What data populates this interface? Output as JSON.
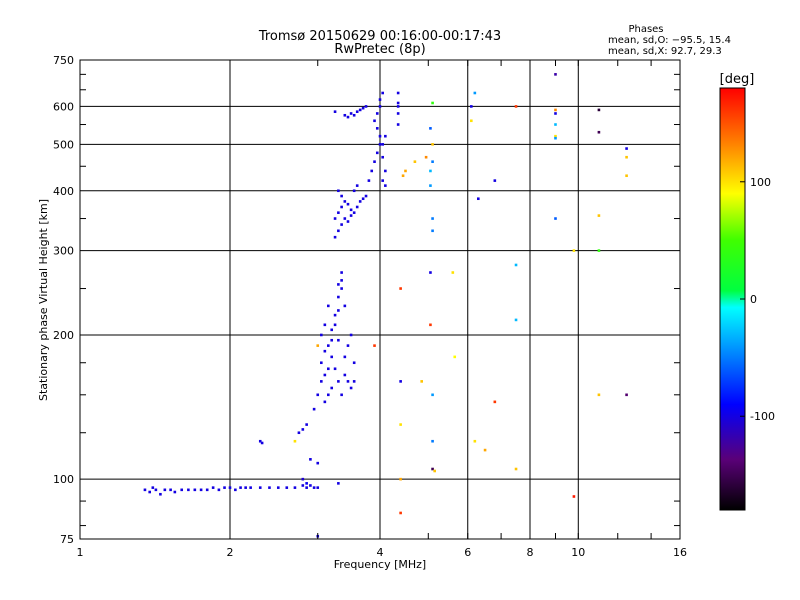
{
  "chart_data": {
    "type": "scatter",
    "title": "Tromsø 20150629 00:16:00-00:17:43",
    "subtitle": "RwPretec (8p)",
    "xlabel": "Frequency [MHz]",
    "ylabel": "Stationary phase Virtual Height [km]",
    "x_scale": "log",
    "y_scale": "log",
    "xlim": [
      1,
      16
    ],
    "ylim": [
      75,
      750
    ],
    "x_ticks": [
      1,
      2,
      4,
      6,
      8,
      10,
      16
    ],
    "x_tick_labels": [
      "1",
      "2",
      "4",
      "6",
      "8",
      "10",
      "16"
    ],
    "y_ticks": [
      75,
      100,
      200,
      300,
      400,
      500,
      600,
      750
    ],
    "y_tick_labels": [
      "75",
      "100",
      "200",
      "300",
      "400",
      "500",
      "600",
      "750"
    ],
    "grid": true,
    "stats": {
      "heading": "Phases",
      "line_o": "mean, sd,O: −95.5, 15.4",
      "line_x": "mean, sd,X:  92.7, 29.3"
    },
    "colorbar": {
      "label": "[deg]",
      "range": [
        -180,
        180
      ],
      "ticks": [
        100,
        0,
        -100
      ],
      "tick_labels": [
        "100",
        "0",
        "-100"
      ]
    },
    "points": [
      {
        "x": 1.35,
        "y": 95,
        "phase": -100
      },
      {
        "x": 1.38,
        "y": 94,
        "phase": -100
      },
      {
        "x": 1.4,
        "y": 96,
        "phase": -100
      },
      {
        "x": 1.42,
        "y": 95,
        "phase": -100
      },
      {
        "x": 1.45,
        "y": 93,
        "phase": -100
      },
      {
        "x": 1.48,
        "y": 95,
        "phase": -100
      },
      {
        "x": 1.52,
        "y": 95,
        "phase": -100
      },
      {
        "x": 1.55,
        "y": 94,
        "phase": -100
      },
      {
        "x": 1.6,
        "y": 95,
        "phase": -100
      },
      {
        "x": 1.65,
        "y": 95,
        "phase": -100
      },
      {
        "x": 1.7,
        "y": 95,
        "phase": -100
      },
      {
        "x": 1.75,
        "y": 95,
        "phase": -100
      },
      {
        "x": 1.8,
        "y": 95,
        "phase": -100
      },
      {
        "x": 1.85,
        "y": 96,
        "phase": -100
      },
      {
        "x": 1.9,
        "y": 95,
        "phase": -100
      },
      {
        "x": 1.95,
        "y": 96,
        "phase": -100
      },
      {
        "x": 2.0,
        "y": 96,
        "phase": -100
      },
      {
        "x": 2.05,
        "y": 95,
        "phase": -100
      },
      {
        "x": 2.1,
        "y": 96,
        "phase": -100
      },
      {
        "x": 2.15,
        "y": 96,
        "phase": -100
      },
      {
        "x": 2.2,
        "y": 96,
        "phase": -100
      },
      {
        "x": 2.3,
        "y": 96,
        "phase": -100
      },
      {
        "x": 2.4,
        "y": 96,
        "phase": -100
      },
      {
        "x": 2.5,
        "y": 96,
        "phase": -100
      },
      {
        "x": 2.6,
        "y": 96,
        "phase": -100
      },
      {
        "x": 2.7,
        "y": 96,
        "phase": -100
      },
      {
        "x": 2.8,
        "y": 97,
        "phase": -100
      },
      {
        "x": 2.85,
        "y": 96,
        "phase": -100
      },
      {
        "x": 2.9,
        "y": 97,
        "phase": -100
      },
      {
        "x": 2.95,
        "y": 96,
        "phase": -100
      },
      {
        "x": 3.0,
        "y": 96,
        "phase": -100
      },
      {
        "x": 2.8,
        "y": 100,
        "phase": -105
      },
      {
        "x": 2.85,
        "y": 98,
        "phase": -95
      },
      {
        "x": 3.0,
        "y": 76,
        "phase": -100
      },
      {
        "x": 3.3,
        "y": 98,
        "phase": -100
      },
      {
        "x": 2.3,
        "y": 120,
        "phase": -100
      },
      {
        "x": 2.32,
        "y": 119,
        "phase": -100
      },
      {
        "x": 2.75,
        "y": 125,
        "phase": -100
      },
      {
        "x": 2.8,
        "y": 127,
        "phase": -100
      },
      {
        "x": 2.85,
        "y": 130,
        "phase": -100
      },
      {
        "x": 2.7,
        "y": 120,
        "phase": 100
      },
      {
        "x": 2.9,
        "y": 110,
        "phase": -100
      },
      {
        "x": 3.0,
        "y": 108,
        "phase": -100
      },
      {
        "x": 2.95,
        "y": 140,
        "phase": -100
      },
      {
        "x": 3.0,
        "y": 150,
        "phase": -100
      },
      {
        "x": 3.05,
        "y": 160,
        "phase": -100
      },
      {
        "x": 3.1,
        "y": 165,
        "phase": -100
      },
      {
        "x": 3.05,
        "y": 175,
        "phase": -100
      },
      {
        "x": 3.15,
        "y": 170,
        "phase": -100
      },
      {
        "x": 3.1,
        "y": 185,
        "phase": -100
      },
      {
        "x": 3.15,
        "y": 190,
        "phase": -100
      },
      {
        "x": 3.2,
        "y": 195,
        "phase": -100
      },
      {
        "x": 3.2,
        "y": 205,
        "phase": -100
      },
      {
        "x": 3.25,
        "y": 210,
        "phase": -100
      },
      {
        "x": 3.25,
        "y": 220,
        "phase": -100
      },
      {
        "x": 3.3,
        "y": 225,
        "phase": -100
      },
      {
        "x": 3.3,
        "y": 240,
        "phase": -100
      },
      {
        "x": 3.35,
        "y": 250,
        "phase": -100
      },
      {
        "x": 3.35,
        "y": 260,
        "phase": -100
      },
      {
        "x": 3.35,
        "y": 270,
        "phase": -100
      },
      {
        "x": 3.3,
        "y": 255,
        "phase": -100
      },
      {
        "x": 3.2,
        "y": 180,
        "phase": -100
      },
      {
        "x": 3.25,
        "y": 170,
        "phase": -100
      },
      {
        "x": 3.3,
        "y": 160,
        "phase": -100
      },
      {
        "x": 3.35,
        "y": 150,
        "phase": -100
      },
      {
        "x": 3.4,
        "y": 165,
        "phase": -100
      },
      {
        "x": 3.45,
        "y": 160,
        "phase": -100
      },
      {
        "x": 3.5,
        "y": 155,
        "phase": -100
      },
      {
        "x": 3.55,
        "y": 160,
        "phase": -100
      },
      {
        "x": 3.4,
        "y": 180,
        "phase": -100
      },
      {
        "x": 3.45,
        "y": 190,
        "phase": -100
      },
      {
        "x": 3.5,
        "y": 200,
        "phase": -100
      },
      {
        "x": 3.55,
        "y": 175,
        "phase": -100
      },
      {
        "x": 3.1,
        "y": 145,
        "phase": -100
      },
      {
        "x": 3.15,
        "y": 150,
        "phase": -100
      },
      {
        "x": 3.2,
        "y": 155,
        "phase": -100
      },
      {
        "x": 3.05,
        "y": 200,
        "phase": -100
      },
      {
        "x": 3.1,
        "y": 210,
        "phase": -100
      },
      {
        "x": 3.0,
        "y": 190,
        "phase": 120
      },
      {
        "x": 3.15,
        "y": 230,
        "phase": -100
      },
      {
        "x": 3.4,
        "y": 230,
        "phase": -100
      },
      {
        "x": 3.3,
        "y": 195,
        "phase": -100
      },
      {
        "x": 3.25,
        "y": 350,
        "phase": -100
      },
      {
        "x": 3.3,
        "y": 360,
        "phase": -100
      },
      {
        "x": 3.35,
        "y": 370,
        "phase": -100
      },
      {
        "x": 3.4,
        "y": 380,
        "phase": -100
      },
      {
        "x": 3.45,
        "y": 375,
        "phase": -100
      },
      {
        "x": 3.5,
        "y": 365,
        "phase": -100
      },
      {
        "x": 3.55,
        "y": 360,
        "phase": -100
      },
      {
        "x": 3.6,
        "y": 370,
        "phase": -100
      },
      {
        "x": 3.65,
        "y": 380,
        "phase": -100
      },
      {
        "x": 3.7,
        "y": 385,
        "phase": -100
      },
      {
        "x": 3.75,
        "y": 390,
        "phase": -100
      },
      {
        "x": 3.3,
        "y": 330,
        "phase": -100
      },
      {
        "x": 3.35,
        "y": 340,
        "phase": -100
      },
      {
        "x": 3.4,
        "y": 350,
        "phase": -100
      },
      {
        "x": 3.45,
        "y": 345,
        "phase": -100
      },
      {
        "x": 3.5,
        "y": 355,
        "phase": -100
      },
      {
        "x": 3.55,
        "y": 400,
        "phase": -100
      },
      {
        "x": 3.6,
        "y": 410,
        "phase": -100
      },
      {
        "x": 3.3,
        "y": 400,
        "phase": -100
      },
      {
        "x": 3.35,
        "y": 390,
        "phase": -100
      },
      {
        "x": 3.25,
        "y": 320,
        "phase": -100
      },
      {
        "x": 3.8,
        "y": 420,
        "phase": -100
      },
      {
        "x": 3.85,
        "y": 440,
        "phase": -100
      },
      {
        "x": 3.9,
        "y": 460,
        "phase": -100
      },
      {
        "x": 3.95,
        "y": 480,
        "phase": -100
      },
      {
        "x": 4.0,
        "y": 500,
        "phase": -100
      },
      {
        "x": 4.0,
        "y": 520,
        "phase": -100
      },
      {
        "x": 3.95,
        "y": 540,
        "phase": -100
      },
      {
        "x": 3.9,
        "y": 560,
        "phase": -100
      },
      {
        "x": 3.95,
        "y": 580,
        "phase": -100
      },
      {
        "x": 4.0,
        "y": 600,
        "phase": -100
      },
      {
        "x": 4.0,
        "y": 620,
        "phase": -100
      },
      {
        "x": 4.05,
        "y": 640,
        "phase": -100
      },
      {
        "x": 4.05,
        "y": 420,
        "phase": -100
      },
      {
        "x": 4.1,
        "y": 440,
        "phase": -100
      },
      {
        "x": 4.1,
        "y": 410,
        "phase": -100
      },
      {
        "x": 4.05,
        "y": 470,
        "phase": -100
      },
      {
        "x": 4.05,
        "y": 500,
        "phase": -100
      },
      {
        "x": 4.1,
        "y": 520,
        "phase": -100
      },
      {
        "x": 3.25,
        "y": 585,
        "phase": -100
      },
      {
        "x": 3.4,
        "y": 575,
        "phase": -100
      },
      {
        "x": 3.45,
        "y": 570,
        "phase": -100
      },
      {
        "x": 3.5,
        "y": 580,
        "phase": -100
      },
      {
        "x": 3.55,
        "y": 575,
        "phase": -100
      },
      {
        "x": 3.6,
        "y": 585,
        "phase": -100
      },
      {
        "x": 3.65,
        "y": 590,
        "phase": -100
      },
      {
        "x": 3.7,
        "y": 595,
        "phase": -100
      },
      {
        "x": 3.75,
        "y": 600,
        "phase": -100
      },
      {
        "x": 4.35,
        "y": 640,
        "phase": -100
      },
      {
        "x": 4.35,
        "y": 610,
        "phase": -100
      },
      {
        "x": 4.35,
        "y": 580,
        "phase": -100
      },
      {
        "x": 4.35,
        "y": 550,
        "phase": -100
      },
      {
        "x": 4.35,
        "y": 600,
        "phase": -100
      },
      {
        "x": 4.5,
        "y": 440,
        "phase": 120
      },
      {
        "x": 4.45,
        "y": 430,
        "phase": 120
      },
      {
        "x": 4.7,
        "y": 460,
        "phase": 110
      },
      {
        "x": 4.95,
        "y": 470,
        "phase": 130
      },
      {
        "x": 5.05,
        "y": 440,
        "phase": -30
      },
      {
        "x": 5.1,
        "y": 500,
        "phase": 110
      },
      {
        "x": 5.05,
        "y": 410,
        "phase": -40
      },
      {
        "x": 5.1,
        "y": 460,
        "phase": -50
      },
      {
        "x": 5.1,
        "y": 610,
        "phase": 40
      },
      {
        "x": 5.05,
        "y": 540,
        "phase": -60
      },
      {
        "x": 5.1,
        "y": 350,
        "phase": -50
      },
      {
        "x": 5.1,
        "y": 330,
        "phase": -50
      },
      {
        "x": 5.05,
        "y": 270,
        "phase": -100
      },
      {
        "x": 4.4,
        "y": 250,
        "phase": 160
      },
      {
        "x": 5.05,
        "y": 210,
        "phase": 160
      },
      {
        "x": 4.4,
        "y": 160,
        "phase": -100
      },
      {
        "x": 4.4,
        "y": 130,
        "phase": 100
      },
      {
        "x": 4.4,
        "y": 85,
        "phase": 160
      },
      {
        "x": 4.4,
        "y": 100,
        "phase": 120
      },
      {
        "x": 3.9,
        "y": 190,
        "phase": 160
      },
      {
        "x": 4.85,
        "y": 160,
        "phase": 110
      },
      {
        "x": 5.1,
        "y": 150,
        "phase": -40
      },
      {
        "x": 5.1,
        "y": 120,
        "phase": -50
      },
      {
        "x": 5.1,
        "y": 105,
        "phase": -150
      },
      {
        "x": 5.15,
        "y": 104,
        "phase": 110
      },
      {
        "x": 5.6,
        "y": 270,
        "phase": 100
      },
      {
        "x": 5.65,
        "y": 180,
        "phase": 90
      },
      {
        "x": 6.1,
        "y": 600,
        "phase": -100
      },
      {
        "x": 6.1,
        "y": 560,
        "phase": 100
      },
      {
        "x": 6.2,
        "y": 640,
        "phase": -40
      },
      {
        "x": 6.3,
        "y": 385,
        "phase": -100
      },
      {
        "x": 6.2,
        "y": 120,
        "phase": 100
      },
      {
        "x": 6.5,
        "y": 115,
        "phase": 120
      },
      {
        "x": 6.8,
        "y": 420,
        "phase": -100
      },
      {
        "x": 6.8,
        "y": 145,
        "phase": 160
      },
      {
        "x": 7.5,
        "y": 600,
        "phase": 160
      },
      {
        "x": 7.5,
        "y": 280,
        "phase": -30
      },
      {
        "x": 7.5,
        "y": 215,
        "phase": -30
      },
      {
        "x": 7.5,
        "y": 105,
        "phase": 110
      },
      {
        "x": 9.0,
        "y": 700,
        "phase": -120
      },
      {
        "x": 9.0,
        "y": 590,
        "phase": 130
      },
      {
        "x": 9.0,
        "y": 580,
        "phase": -100
      },
      {
        "x": 9.0,
        "y": 550,
        "phase": -30
      },
      {
        "x": 9.0,
        "y": 520,
        "phase": 100
      },
      {
        "x": 9.0,
        "y": 515,
        "phase": -40
      },
      {
        "x": 9.0,
        "y": 350,
        "phase": -60
      },
      {
        "x": 9.8,
        "y": 300,
        "phase": 100
      },
      {
        "x": 9.8,
        "y": 92,
        "phase": 170
      },
      {
        "x": 11.0,
        "y": 590,
        "phase": -160
      },
      {
        "x": 11.0,
        "y": 530,
        "phase": -150
      },
      {
        "x": 11.0,
        "y": 355,
        "phase": 110
      },
      {
        "x": 11.0,
        "y": 300,
        "phase": 40
      },
      {
        "x": 11.0,
        "y": 150,
        "phase": 110
      },
      {
        "x": 12.5,
        "y": 490,
        "phase": -100
      },
      {
        "x": 12.5,
        "y": 470,
        "phase": 110
      },
      {
        "x": 12.5,
        "y": 430,
        "phase": 110
      },
      {
        "x": 12.5,
        "y": 150,
        "phase": -140
      }
    ]
  }
}
